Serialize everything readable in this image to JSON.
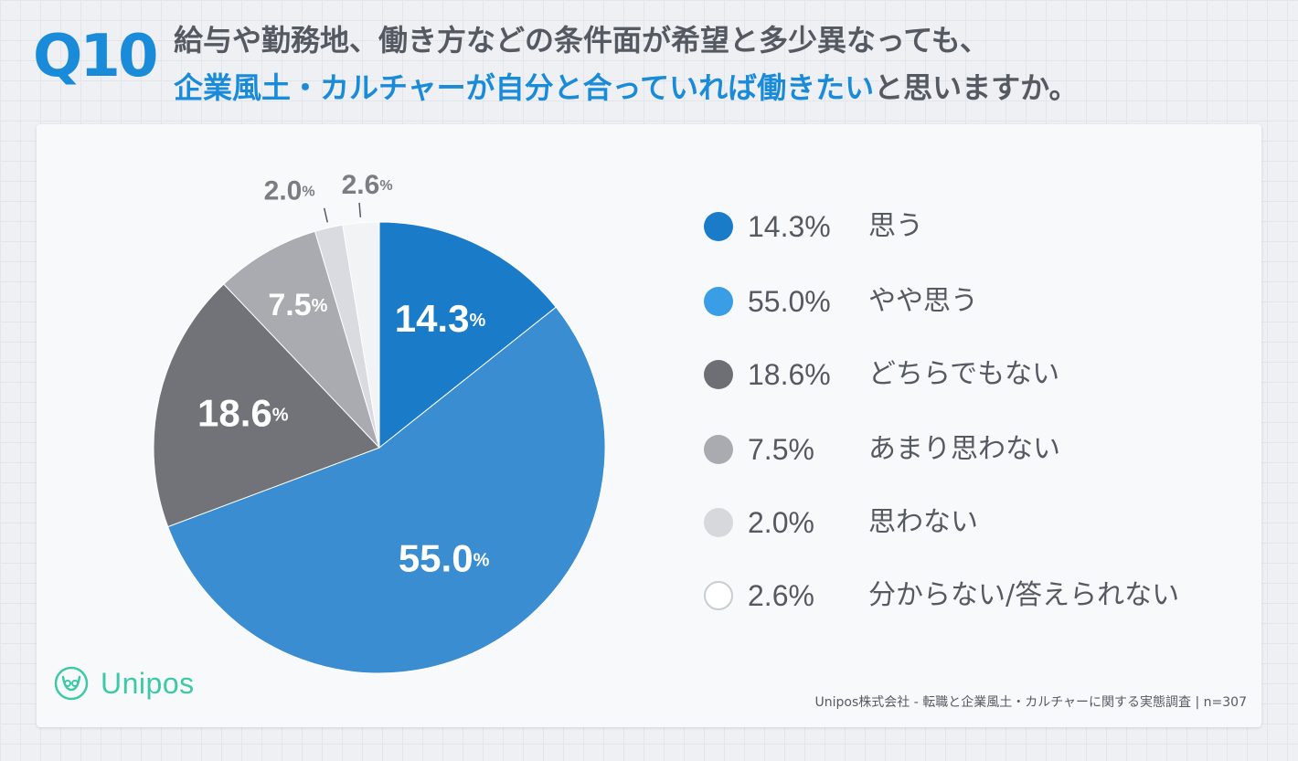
{
  "question": {
    "number": "Q10",
    "line1": "給与や勤務地、働き方などの条件面が希望と多少異なっても、",
    "line2_highlight": "企業風土・カルチャーが自分と合っていれば働きたい",
    "line2_rest": "と思いますか。"
  },
  "chart_data": {
    "type": "pie",
    "title": "",
    "categories": [
      "思う",
      "やや思う",
      "どちらでもない",
      "あまり思わない",
      "思わない",
      "分からない/答えられない"
    ],
    "values": [
      14.3,
      55.0,
      18.6,
      7.5,
      2.0,
      2.6
    ],
    "value_labels": [
      "14.3",
      "55.0",
      "18.6",
      "7.5",
      "2.0",
      "2.6"
    ],
    "percent_sign": "%",
    "colors": [
      "#1a7cc8",
      "#3a8dd1",
      "#717378",
      "#a9abb1",
      "#d9dbe0",
      "#f2f3f5"
    ],
    "start_angle_deg": 0,
    "direction": "clockwise",
    "outside_labels": [
      4,
      5
    ]
  },
  "legend": {
    "items": [
      {
        "value": "14.3%",
        "label": "思う",
        "color": "#1a7cc8"
      },
      {
        "value": "55.0%",
        "label": "やや思う",
        "color": "#3a9ee6"
      },
      {
        "value": "18.6%",
        "label": "どちらでもない",
        "color": "#6d6f74"
      },
      {
        "value": "7.5%",
        "label": "あまり思わない",
        "color": "#a9abb1"
      },
      {
        "value": "2.0%",
        "label": "思わない",
        "color": "#d6d8dc"
      },
      {
        "value": "2.6%",
        "label": "分からない/答えられない",
        "color": "#ffffff"
      }
    ]
  },
  "brand": {
    "name": "Unipos",
    "color": "#3dc9a8"
  },
  "footnote": "Unipos株式会社 - 転職と企業風土・カルチャーに関する実態調査 | n=307"
}
